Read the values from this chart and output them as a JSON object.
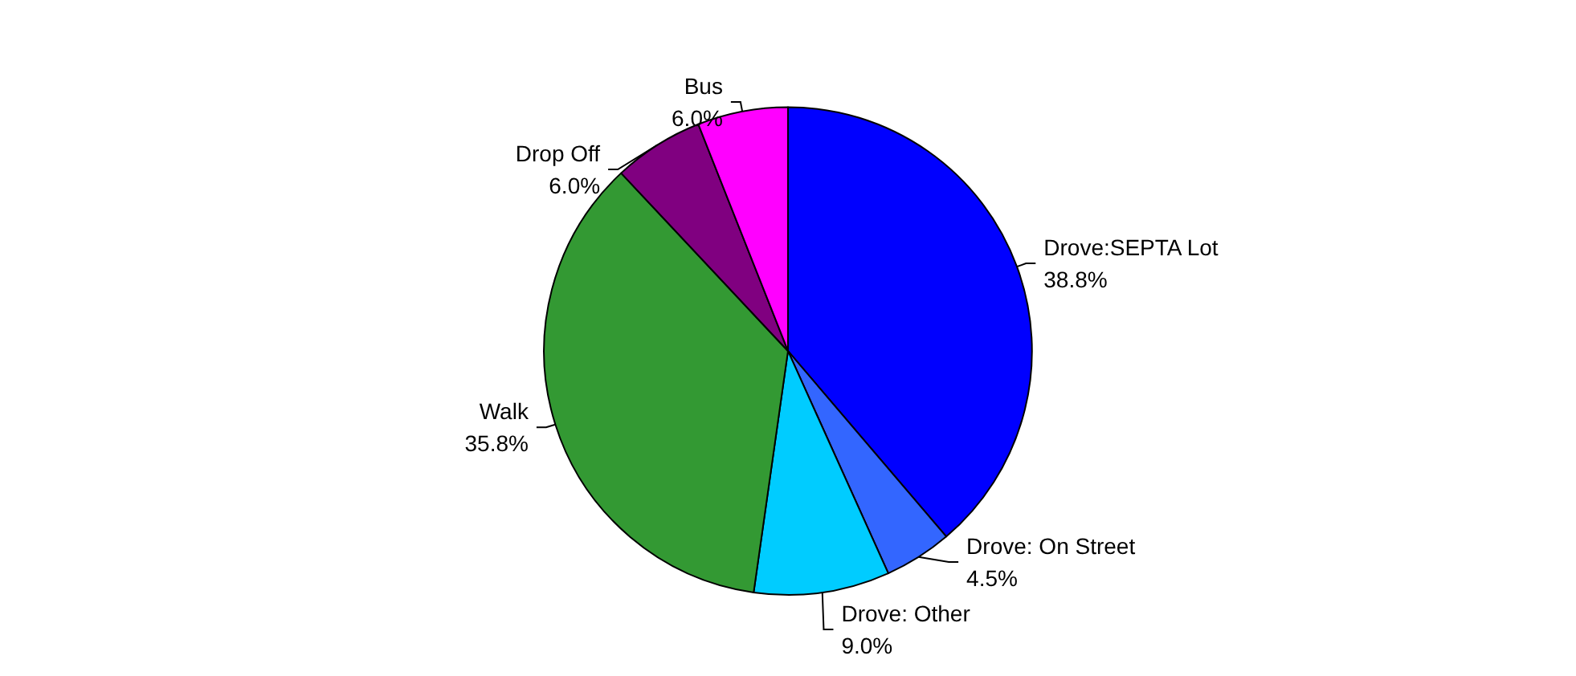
{
  "chart_data": {
    "type": "pie",
    "categories": [
      "Drove:SEPTA Lot",
      "Drove: On Street",
      "Drove: Other",
      "Walk",
      "Drop Off",
      "Bus"
    ],
    "values": [
      38.8,
      4.5,
      9.0,
      35.8,
      6.0,
      6.0
    ],
    "value_labels": [
      "38.8%",
      "4.5%",
      "9.0%",
      "35.8%",
      "6.0%",
      "6.0%"
    ],
    "colors": [
      "#0000ff",
      "#3366ff",
      "#00ccff",
      "#339933",
      "#800080",
      "#ff00ff"
    ],
    "legend": false
  }
}
